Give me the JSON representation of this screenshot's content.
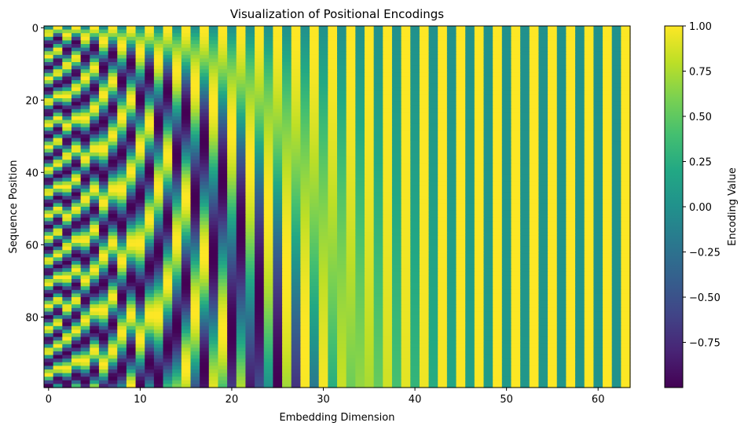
{
  "chart_data": {
    "type": "heatmap",
    "title": "Visualization of Positional Encodings",
    "xlabel": "Embedding Dimension",
    "ylabel": "Sequence Position",
    "rows": 100,
    "cols": 64,
    "d_model": 64,
    "base": 10000,
    "value_range": [
      -1,
      1
    ],
    "x_ticks": [
      0,
      10,
      20,
      30,
      40,
      50,
      60
    ],
    "y_ticks": [
      0,
      20,
      40,
      60,
      80
    ],
    "colormap": "viridis",
    "colorbar": {
      "label": "Encoding Value",
      "ticks": [
        "1.00",
        "0.75",
        "0.50",
        "0.25",
        "0.00",
        "−0.25",
        "−0.50",
        "−0.75"
      ],
      "tick_values": [
        1.0,
        0.75,
        0.5,
        0.25,
        0.0,
        -0.25,
        -0.5,
        -0.75
      ]
    }
  }
}
